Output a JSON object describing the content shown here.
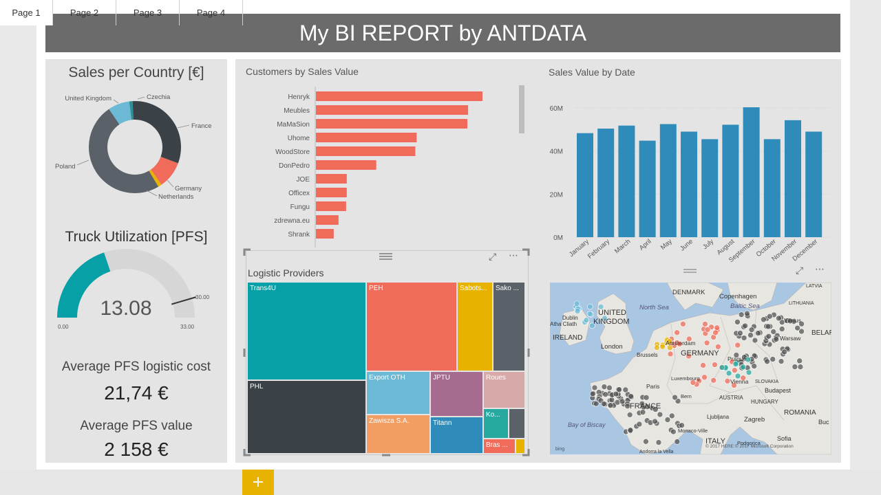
{
  "report": {
    "title": "My BI REPORT by ANTDATA"
  },
  "sales_country": {
    "title": "Sales per Country [€]",
    "labels": [
      "United Kingdom",
      "Czechia",
      "France",
      "Germany",
      "Netherlands",
      "Poland"
    ],
    "colors": {
      "uk": "#6cb9d6",
      "czechia": "#2f8f94",
      "france": "#3a4248",
      "germany": "#f06b59",
      "netherlands": "#e8b300",
      "poland": "#5a6168"
    }
  },
  "truck": {
    "title": "Truck Utilization [PFS]",
    "value": "13.08",
    "min": "0.00",
    "max": "33.00",
    "target": "30.00",
    "fraction": 0.3964,
    "target_fraction": 0.909
  },
  "kpi": {
    "cost_label": "Average PFS logistic cost",
    "cost_value": "21,74 €",
    "value_label": "Average PFS value",
    "value_value": "2 158 €"
  },
  "customers": {
    "title": "Customers by Sales Value",
    "bar_color": "#f06b59",
    "names": [
      "Henryk",
      "Meubles",
      "MaMaSion",
      "Uhome",
      "WoodStore",
      "DonPedro",
      "JOE",
      "Officex",
      "Fungu",
      "zdrewna.eu",
      "Shrank"
    ],
    "values": [
      243,
      222,
      221,
      147,
      145,
      88,
      45,
      45,
      44,
      33,
      26
    ]
  },
  "sales_date": {
    "title": "Sales Value by Date",
    "bar_color": "#2e8bba",
    "months": [
      "January",
      "February",
      "March",
      "April",
      "May",
      "June",
      "July",
      "August",
      "September",
      "October",
      "November",
      "December"
    ],
    "values": [
      48.3,
      50.4,
      51.8,
      44.8,
      52.5,
      49.0,
      45.5,
      52.2,
      60.3,
      45.5,
      54.3,
      49.0
    ],
    "ticks": [
      "0M",
      "20M",
      "40M",
      "60M"
    ],
    "ymax": 66
  },
  "logistic": {
    "title": "Logistic Providers",
    "items": [
      "Trans4U",
      "PEH",
      "Sabots...",
      "Sako ...",
      "PHL",
      "Export OTH",
      "JPTU",
      "Roues",
      "Zawisza S.A.",
      "Titann",
      "Ko...",
      "Bras ..."
    ]
  },
  "map": {
    "labels": [
      "DENMARK",
      "Copenhagen",
      "LATVIA",
      "Baltic Sea",
      "LITHUANIA",
      "North Sea",
      "UNITED",
      "KINGDOM",
      "Dublin",
      "Atha Cliath",
      "Vilnius",
      "IRELAND",
      "Amsterdam",
      "BELAR",
      "London",
      "Warsaw",
      "GERMANY",
      "Brussels",
      "Prague",
      "Luxembourg",
      "SLOVAKIA",
      "Vienna",
      "Budapest",
      "Paris",
      "Bern",
      "AUSTRIA",
      "HUNGARY",
      "FRANCE",
      "ROMANIA",
      "Bay of Biscay",
      "Ljubljana",
      "Zagreb",
      "Buc",
      "Monaco-Ville",
      "Sofia",
      "ITALY",
      "Podgorica",
      "Andorra la Vella",
      "© 2017 HERE © 2017 Microsoft Corporation",
      "bing"
    ]
  },
  "tabs": {
    "items": [
      "Page 1",
      "Page 2",
      "Page 3",
      "Page 4"
    ],
    "add": "+"
  }
}
